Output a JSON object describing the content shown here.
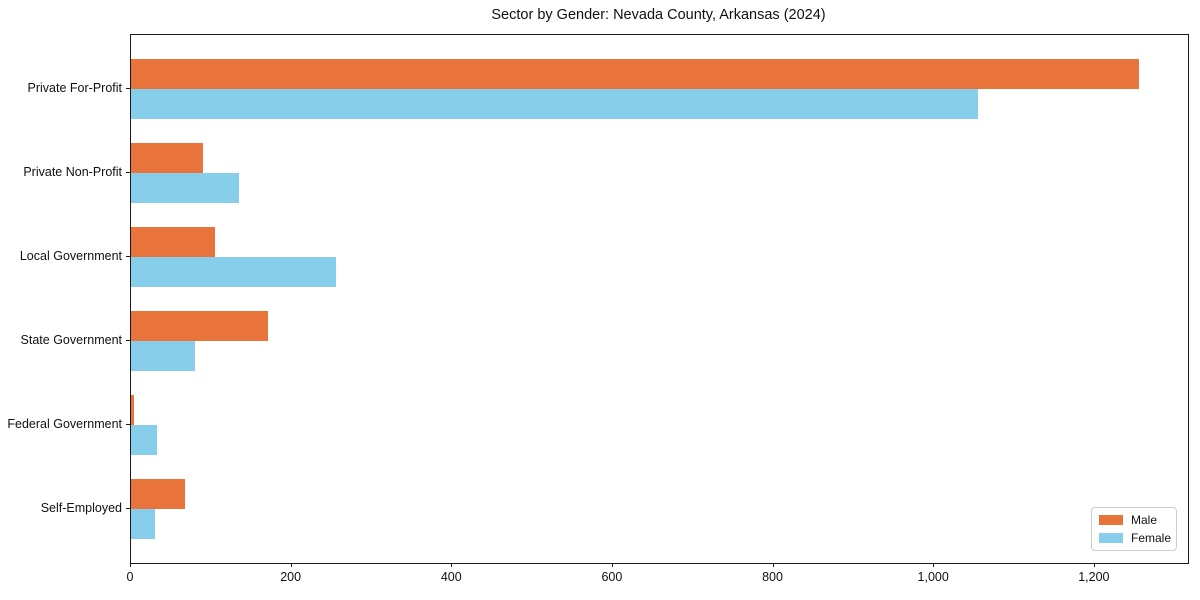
{
  "chart_data": {
    "type": "bar",
    "orientation": "horizontal",
    "title": "Sector by Gender: Nevada County, Arkansas (2024)",
    "categories": [
      "Private For-Profit",
      "Private Non-Profit",
      "Local Government",
      "State Government",
      "Federal Government",
      "Self-Employed"
    ],
    "series": [
      {
        "name": "Male",
        "color": "#E8743B",
        "values": [
          1255,
          90,
          105,
          170,
          4,
          67
        ]
      },
      {
        "name": "Female",
        "color": "#87CEEB",
        "values": [
          1055,
          135,
          255,
          80,
          32,
          30
        ]
      }
    ],
    "xlabel": "",
    "ylabel": "",
    "xlim": [
      0,
      1316
    ],
    "xticks": [
      0,
      200,
      400,
      600,
      800,
      1000,
      1200
    ],
    "xtick_labels": [
      "0",
      "200",
      "400",
      "600",
      "800",
      "1,000",
      "1,200"
    ],
    "grid": false,
    "legend_position": "lower right",
    "spine_color": "#1a1a1a",
    "background_color": "#ffffff"
  }
}
